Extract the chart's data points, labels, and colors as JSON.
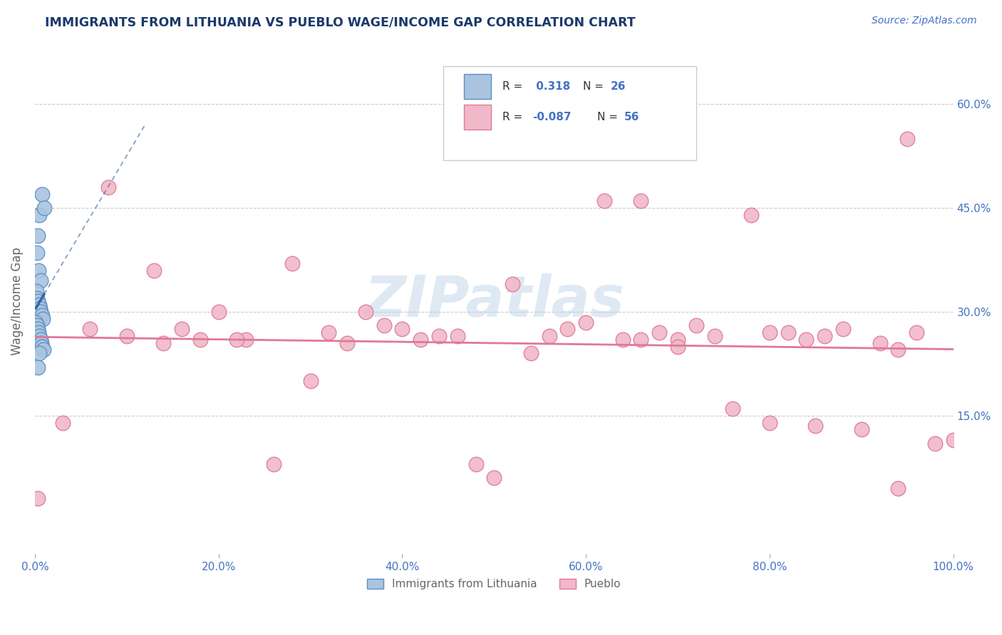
{
  "title": "IMMIGRANTS FROM LITHUANIA VS PUEBLO WAGE/INCOME GAP CORRELATION CHART",
  "source_text": "Source: ZipAtlas.com",
  "ylabel": "Wage/Income Gap",
  "xlim": [
    0.0,
    100.0
  ],
  "ylim": [
    -5.0,
    68.0
  ],
  "yticks": [
    15.0,
    30.0,
    45.0,
    60.0
  ],
  "xticks": [
    0.0,
    20.0,
    40.0,
    60.0,
    80.0,
    100.0
  ],
  "xtick_labels": [
    "0.0%",
    "20.0%",
    "40.0%",
    "60.0%",
    "80.0%",
    "100.0%"
  ],
  "ytick_labels": [
    "15.0%",
    "30.0%",
    "45.0%",
    "60.0%"
  ],
  "grid_color": "#cccccc",
  "background_color": "#ffffff",
  "blue_color": "#aac4e0",
  "blue_edge_color": "#5b8ec4",
  "blue_line_color": "#3464a8",
  "pink_color": "#f0b8c8",
  "pink_edge_color": "#e07898",
  "pink_line_color": "#e07898",
  "legend_r1": "R =  0.318",
  "legend_n1": "N = 26",
  "legend_r2": "R = -0.087",
  "legend_n2": "N = 56",
  "blue_label": "Immigrants from Lithuania",
  "pink_label": "Pueblo",
  "watermark": "ZIPatlas",
  "title_color": "#1a3a6b",
  "source_color": "#4472c4",
  "axis_label_color": "#666666",
  "tick_color": "#4472c4",
  "legend_text_color": "#333333",
  "legend_value_color": "#4472c4",
  "blue_scatter_x": [
    0.8,
    0.5,
    1.0,
    0.3,
    0.2,
    0.4,
    0.6,
    0.15,
    0.25,
    0.35,
    0.45,
    0.55,
    0.65,
    0.75,
    0.85,
    0.1,
    0.2,
    0.3,
    0.4,
    0.5,
    0.6,
    0.7,
    0.8,
    0.9,
    0.5,
    0.35
  ],
  "blue_scatter_y": [
    47.0,
    44.0,
    45.0,
    41.0,
    38.5,
    36.0,
    34.5,
    33.0,
    32.0,
    31.5,
    31.0,
    30.5,
    30.0,
    29.5,
    29.0,
    28.5,
    28.0,
    27.5,
    27.0,
    26.5,
    26.0,
    25.5,
    25.0,
    24.5,
    24.0,
    22.0
  ],
  "pink_scatter_x": [
    0.3,
    3.0,
    8.0,
    13.0,
    16.0,
    20.0,
    23.0,
    28.0,
    32.0,
    36.0,
    40.0,
    44.0,
    48.0,
    52.0,
    56.0,
    60.0,
    64.0,
    68.0,
    72.0,
    76.0,
    80.0,
    84.0,
    88.0,
    92.0,
    96.0,
    10.0,
    18.0,
    26.0,
    34.0,
    42.0,
    50.0,
    58.0,
    66.0,
    74.0,
    82.0,
    90.0,
    98.0,
    6.0,
    22.0,
    30.0,
    38.0,
    46.0,
    54.0,
    62.0,
    70.0,
    78.0,
    86.0,
    94.0,
    14.0,
    70.0,
    85.0,
    94.0,
    66.0,
    80.0,
    95.0,
    100.0
  ],
  "pink_scatter_y": [
    3.0,
    14.0,
    48.0,
    36.0,
    27.5,
    30.0,
    26.0,
    37.0,
    27.0,
    30.0,
    27.5,
    26.5,
    8.0,
    34.0,
    26.5,
    28.5,
    26.0,
    27.0,
    28.0,
    16.0,
    27.0,
    26.0,
    27.5,
    25.5,
    27.0,
    26.5,
    26.0,
    8.0,
    25.5,
    26.0,
    6.0,
    27.5,
    46.0,
    26.5,
    27.0,
    13.0,
    11.0,
    27.5,
    26.0,
    20.0,
    28.0,
    26.5,
    24.0,
    46.0,
    26.0,
    44.0,
    26.5,
    24.5,
    25.5,
    25.0,
    13.5,
    4.5,
    26.0,
    14.0,
    55.0,
    11.5
  ]
}
